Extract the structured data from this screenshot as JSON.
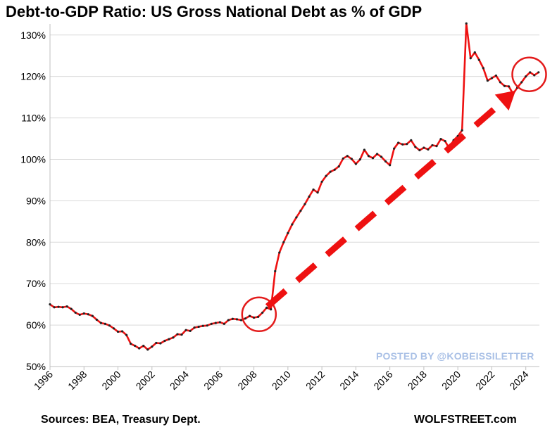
{
  "chart_data": {
    "type": "line",
    "title": "Debt-to-GDP Ratio: US Gross National Debt as % of GDP",
    "xlim": [
      1996,
      2024.8
    ],
    "ylim": [
      50,
      132
    ],
    "y_ticks": [
      "50%",
      "60%",
      "70%",
      "80%",
      "90%",
      "100%",
      "110%",
      "120%",
      "130%"
    ],
    "y_tick_values": [
      50,
      60,
      70,
      80,
      90,
      100,
      110,
      120,
      130
    ],
    "x_ticks": [
      "1996",
      "1998",
      "2000",
      "2002",
      "2004",
      "2006",
      "2008",
      "2010",
      "2012",
      "2014",
      "2016",
      "2018",
      "2020",
      "2022",
      "2024"
    ],
    "x_tick_values": [
      1996,
      1998,
      2000,
      2002,
      2004,
      2006,
      2008,
      2010,
      2012,
      2014,
      2016,
      2018,
      2020,
      2022,
      2024
    ],
    "grid": "horizontal",
    "line_color": "#ee1111",
    "marker_color": "#222222",
    "series": [
      {
        "name": "",
        "points": [
          [
            1996.0,
            65.0
          ],
          [
            1996.25,
            64.3
          ],
          [
            1996.5,
            64.4
          ],
          [
            1996.75,
            64.3
          ],
          [
            1997.0,
            64.5
          ],
          [
            1997.25,
            63.9
          ],
          [
            1997.5,
            63.0
          ],
          [
            1997.75,
            62.5
          ],
          [
            1998.0,
            62.8
          ],
          [
            1998.25,
            62.6
          ],
          [
            1998.5,
            62.2
          ],
          [
            1998.75,
            61.3
          ],
          [
            1999.0,
            60.5
          ],
          [
            1999.25,
            60.3
          ],
          [
            1999.5,
            59.9
          ],
          [
            1999.75,
            59.2
          ],
          [
            2000.0,
            58.4
          ],
          [
            2000.25,
            58.5
          ],
          [
            2000.5,
            57.6
          ],
          [
            2000.75,
            55.5
          ],
          [
            2001.0,
            55.0
          ],
          [
            2001.25,
            54.4
          ],
          [
            2001.5,
            55.0
          ],
          [
            2001.75,
            54.1
          ],
          [
            2002.0,
            54.8
          ],
          [
            2002.25,
            55.7
          ],
          [
            2002.5,
            55.6
          ],
          [
            2002.75,
            56.2
          ],
          [
            2003.0,
            56.6
          ],
          [
            2003.25,
            57.0
          ],
          [
            2003.5,
            57.8
          ],
          [
            2003.75,
            57.7
          ],
          [
            2004.0,
            58.8
          ],
          [
            2004.25,
            58.6
          ],
          [
            2004.5,
            59.4
          ],
          [
            2004.75,
            59.6
          ],
          [
            2005.0,
            59.8
          ],
          [
            2005.25,
            59.9
          ],
          [
            2005.5,
            60.3
          ],
          [
            2005.75,
            60.5
          ],
          [
            2006.0,
            60.7
          ],
          [
            2006.25,
            60.3
          ],
          [
            2006.5,
            61.2
          ],
          [
            2006.75,
            61.5
          ],
          [
            2007.0,
            61.4
          ],
          [
            2007.25,
            61.2
          ],
          [
            2007.5,
            61.6
          ],
          [
            2007.75,
            62.2
          ],
          [
            2008.0,
            61.8
          ],
          [
            2008.25,
            62.0
          ],
          [
            2008.5,
            63.0
          ],
          [
            2008.75,
            64.2
          ],
          [
            2009.0,
            63.8
          ],
          [
            2009.25,
            73.0
          ],
          [
            2009.5,
            77.5
          ],
          [
            2009.75,
            80.0
          ],
          [
            2010.0,
            82.2
          ],
          [
            2010.25,
            84.3
          ],
          [
            2010.5,
            86.0
          ],
          [
            2010.75,
            87.6
          ],
          [
            2011.0,
            89.2
          ],
          [
            2011.25,
            91.0
          ],
          [
            2011.5,
            92.7
          ],
          [
            2011.75,
            92.0
          ],
          [
            2012.0,
            94.6
          ],
          [
            2012.25,
            96.0
          ],
          [
            2012.5,
            97.0
          ],
          [
            2012.75,
            97.5
          ],
          [
            2013.0,
            98.3
          ],
          [
            2013.25,
            100.2
          ],
          [
            2013.5,
            100.8
          ],
          [
            2013.75,
            100.1
          ],
          [
            2014.0,
            98.9
          ],
          [
            2014.25,
            100.0
          ],
          [
            2014.5,
            102.3
          ],
          [
            2014.75,
            100.8
          ],
          [
            2015.0,
            100.3
          ],
          [
            2015.25,
            101.3
          ],
          [
            2015.5,
            100.6
          ],
          [
            2015.75,
            99.5
          ],
          [
            2016.0,
            98.6
          ],
          [
            2016.25,
            102.6
          ],
          [
            2016.5,
            104.0
          ],
          [
            2016.75,
            103.6
          ],
          [
            2017.0,
            103.7
          ],
          [
            2017.25,
            104.6
          ],
          [
            2017.5,
            103.0
          ],
          [
            2017.75,
            102.2
          ],
          [
            2018.0,
            102.8
          ],
          [
            2018.25,
            102.4
          ],
          [
            2018.5,
            103.4
          ],
          [
            2018.75,
            103.2
          ],
          [
            2019.0,
            104.9
          ],
          [
            2019.25,
            104.4
          ],
          [
            2019.5,
            102.6
          ],
          [
            2019.75,
            104.6
          ],
          [
            2020.0,
            105.6
          ],
          [
            2020.25,
            107.0
          ],
          [
            2020.5,
            132.8
          ],
          [
            2020.75,
            124.4
          ],
          [
            2021.0,
            125.8
          ],
          [
            2021.25,
            124.0
          ],
          [
            2021.5,
            122.0
          ],
          [
            2021.75,
            119.0
          ],
          [
            2022.0,
            119.6
          ],
          [
            2022.25,
            120.2
          ],
          [
            2022.5,
            118.6
          ],
          [
            2022.75,
            117.7
          ],
          [
            2023.0,
            117.6
          ],
          [
            2023.25,
            115.8
          ],
          [
            2023.5,
            117.3
          ],
          [
            2023.75,
            118.6
          ],
          [
            2024.0,
            120.0
          ],
          [
            2024.25,
            121.0
          ],
          [
            2024.5,
            120.3
          ],
          [
            2024.75,
            121.0
          ]
        ]
      }
    ],
    "annotations": {
      "circles": [
        {
          "label": "2008 start",
          "x": 2008.3,
          "y": 62.6
        },
        {
          "label": "2024 end",
          "x": 2024.2,
          "y": 120.5
        }
      ],
      "arrow": {
        "from": [
          2008.8,
          64.5
        ],
        "to": [
          2023.4,
          116.6
        ],
        "color": "#ee1111"
      }
    }
  },
  "footer": {
    "source": "Sources: BEA, Treasury Dept.",
    "site": "WOLFSTREET.com"
  },
  "watermark": "POSTED BY @KOBEISSILETTER"
}
